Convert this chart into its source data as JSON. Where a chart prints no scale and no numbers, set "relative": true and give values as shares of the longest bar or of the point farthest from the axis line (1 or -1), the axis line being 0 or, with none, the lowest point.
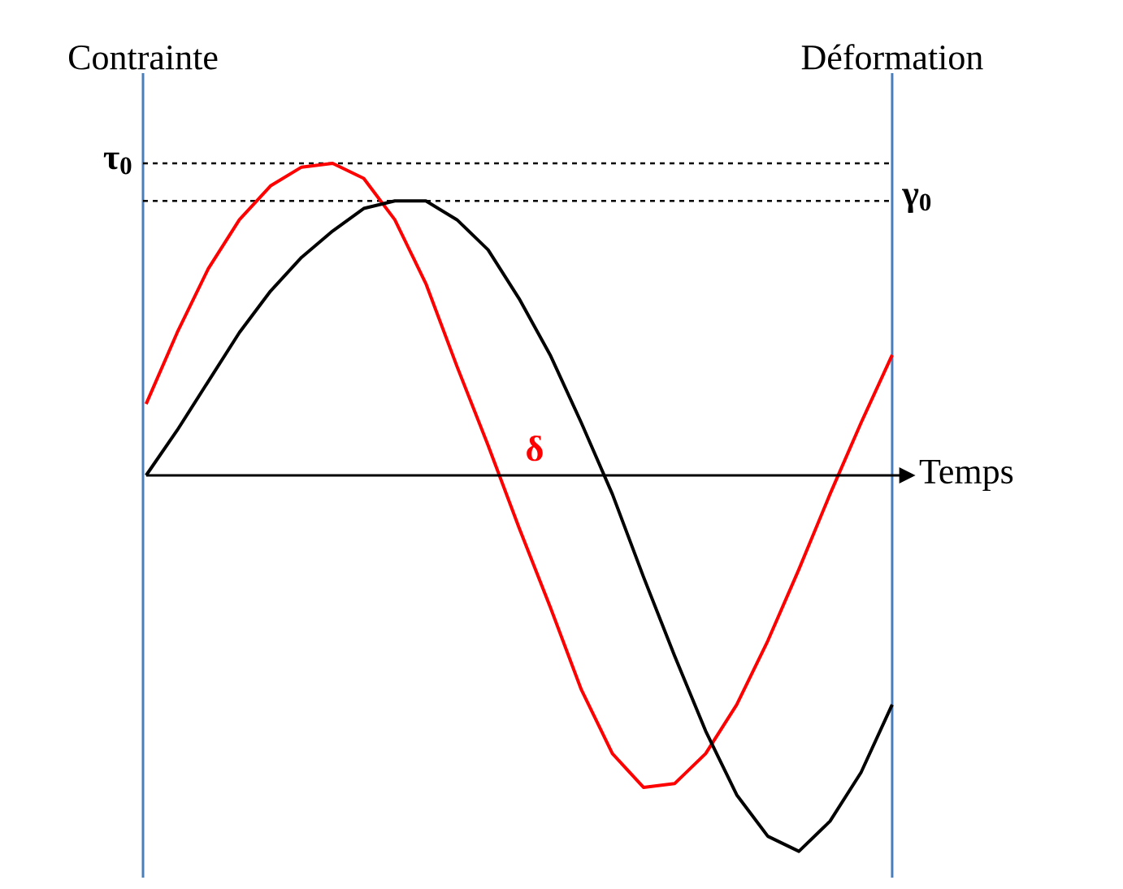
{
  "chart_data": {
    "type": "line",
    "relative": true,
    "ylabel": "Contrainte",
    "y2label": "Déformation",
    "xlabel": "Temps",
    "categories": [
      null,
      null,
      null,
      null,
      null,
      null,
      null,
      null,
      null,
      null,
      null,
      null,
      null,
      null,
      null,
      null,
      null,
      null,
      null,
      null,
      null,
      null,
      null,
      null,
      null
    ],
    "series": [
      {
        "color": "#ff0000",
        "values": [
          0.19,
          0.38,
          0.55,
          0.68,
          0.77,
          0.82,
          0.83,
          0.79,
          0.68,
          0.51,
          0.29,
          0.08,
          -0.14,
          -0.35,
          -0.57,
          -0.74,
          -0.83,
          -0.82,
          -0.74,
          -0.61,
          -0.44,
          -0.25,
          -0.05,
          0.14,
          0.32
        ]
      },
      {
        "color": "#000000",
        "values": [
          0,
          0.12,
          0.25,
          0.38,
          0.49,
          0.58,
          0.65,
          0.71,
          0.73,
          0.73,
          0.68,
          0.6,
          0.47,
          0.32,
          0.14,
          -0.05,
          -0.27,
          -0.48,
          -0.68,
          -0.85,
          -0.96,
          -1.0,
          -0.92,
          -0.79,
          -0.61
        ]
      }
    ],
    "ref_lines": [
      {
        "axis": "y",
        "value": 0.83,
        "label": "τ$_{0}$",
        "line_style": "dashed",
        "color": "#000000"
      },
      {
        "axis": "y",
        "value": 0.73,
        "label": "γ$_{0}$",
        "line_style": "dashed",
        "color": "#000000"
      }
    ],
    "annotations": [
      "δ"
    ],
    "marker": "none",
    "line_style": "solid"
  }
}
